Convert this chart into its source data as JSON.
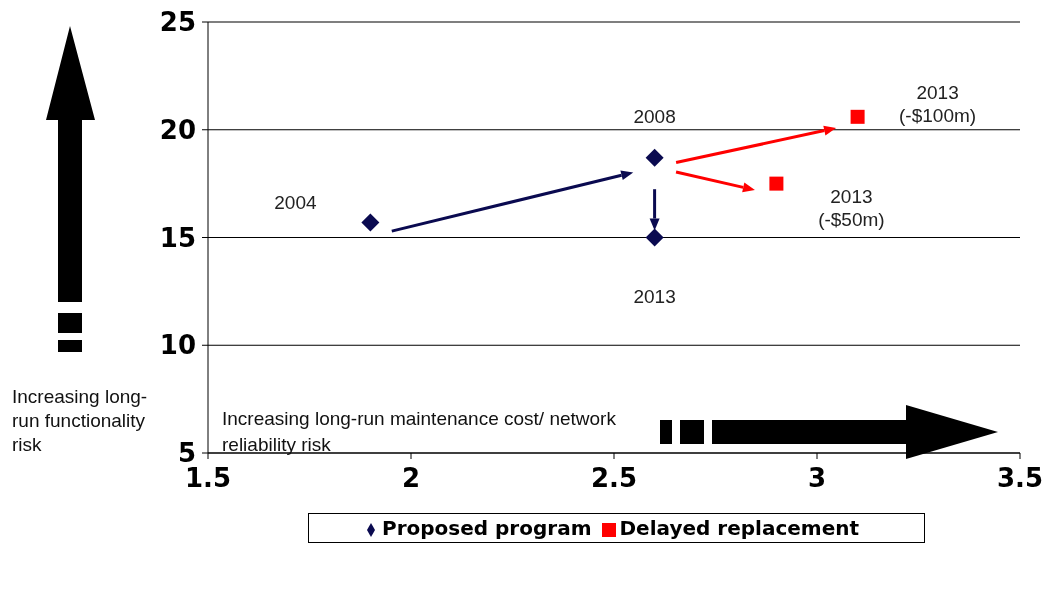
{
  "chart_data": {
    "type": "scatter",
    "xlabel": "Increasing long-run maintenance cost/ network reliability risk",
    "ylabel": "Increasing long-run functionality risk",
    "series": [
      {
        "name": "Proposed program",
        "color": "#0a0a50",
        "marker": "diamond",
        "x": [
          1.9,
          2.6,
          2.6
        ],
        "values": [
          15.7,
          18.7,
          15.0
        ]
      },
      {
        "name": "Delayed replacement",
        "color": "#ff0000",
        "marker": "square",
        "x": [
          3.1,
          2.9
        ],
        "values": [
          20.6,
          17.5
        ]
      }
    ],
    "annotations": [
      {
        "text": "2004",
        "x": 1.9,
        "y": 15.7
      },
      {
        "text": "2008",
        "x": 2.6,
        "y": 18.7
      },
      {
        "text": "2013",
        "x": 2.6,
        "y": 15.0
      },
      {
        "text": "2013\n(-$100m)",
        "x": 3.1,
        "y": 20.6
      },
      {
        "text": "2013\n(-$50m)",
        "x": 2.9,
        "y": 17.5
      }
    ],
    "xlim": [
      1.5,
      3.5
    ],
    "xticks": [
      1.5,
      2,
      2.5,
      3,
      3.5
    ],
    "ylim": [
      5,
      25
    ],
    "yticks": [
      5,
      10,
      15,
      20,
      25
    ],
    "grid": "y",
    "legend": "bottom"
  }
}
